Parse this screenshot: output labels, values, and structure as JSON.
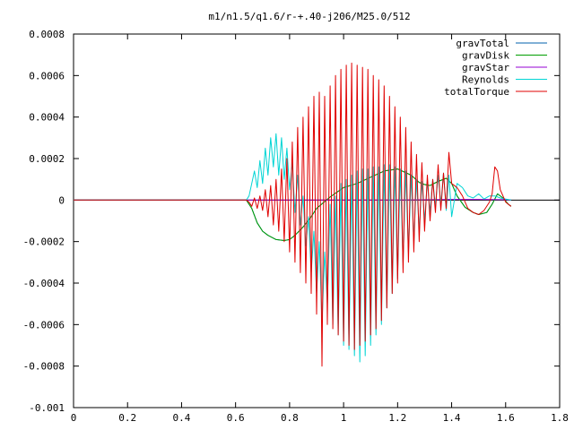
{
  "chart_data": {
    "type": "line",
    "title": "m1/n1.5/q1.6/r-+.40-j206/M25.0/512",
    "xlabel": "",
    "ylabel": "",
    "xlim": [
      0,
      1.8
    ],
    "ylim": [
      -0.001,
      0.0008
    ],
    "grid": false,
    "legend_position": "top-right",
    "x_ticks": [
      {
        "value": 0,
        "label": "0"
      },
      {
        "value": 0.2,
        "label": "0.2"
      },
      {
        "value": 0.4,
        "label": "0.4"
      },
      {
        "value": 0.6,
        "label": "0.6"
      },
      {
        "value": 0.8,
        "label": "0.8"
      },
      {
        "value": 1.0,
        "label": "1"
      },
      {
        "value": 1.2,
        "label": "1.2"
      },
      {
        "value": 1.4,
        "label": "1.4"
      },
      {
        "value": 1.6,
        "label": "1.6"
      },
      {
        "value": 1.8,
        "label": "1.8"
      }
    ],
    "y_ticks": [
      {
        "value": 0.0008,
        "label": "0.0008"
      },
      {
        "value": 0.0006,
        "label": "0.0006"
      },
      {
        "value": 0.0004,
        "label": "0.0004"
      },
      {
        "value": 0.0002,
        "label": "0.0002"
      },
      {
        "value": 0,
        "label": "0"
      },
      {
        "value": -0.0002,
        "label": "-0.0002"
      },
      {
        "value": -0.0004,
        "label": "-0.0004"
      },
      {
        "value": -0.0006,
        "label": "-0.0006"
      },
      {
        "value": -0.0008,
        "label": "-0.0008"
      },
      {
        "value": -0.001,
        "label": "-0.001"
      }
    ],
    "series": [
      {
        "name": "gravTotal",
        "color": "#0060ad",
        "x": [
          0,
          0.64,
          0.66,
          0.68,
          0.7,
          0.72,
          0.75,
          0.78,
          0.8,
          0.82,
          0.85,
          0.88,
          0.9,
          0.95,
          1.0,
          1.05,
          1.1,
          1.15,
          1.2,
          1.25,
          1.28,
          1.3,
          1.32,
          1.35,
          1.38,
          1.4,
          1.42,
          1.45,
          1.48,
          1.5,
          1.53,
          1.55,
          1.57,
          1.59,
          1.61,
          1.62
        ],
        "y": [
          0,
          0,
          -4e-05,
          -0.00011,
          -0.00015,
          -0.00017,
          -0.00019,
          -0.000195,
          -0.00019,
          -0.00017,
          -0.00013,
          -8e-05,
          -4e-05,
          1.5e-05,
          6e-05,
          8e-05,
          0.00011,
          0.00014,
          0.00015,
          0.00012,
          8.5e-05,
          7.5e-05,
          7e-05,
          9e-05,
          0.000105,
          8e-05,
          2e-05,
          -3.5e-05,
          -6e-05,
          -7e-05,
          -6e-05,
          -2e-05,
          3e-05,
          1e-05,
          -2e-05,
          -3e-05
        ]
      },
      {
        "name": "gravDisk",
        "color": "#009e00",
        "x": [
          0,
          0.64,
          0.66,
          0.68,
          0.7,
          0.72,
          0.75,
          0.78,
          0.8,
          0.82,
          0.85,
          0.88,
          0.9,
          0.95,
          1.0,
          1.05,
          1.1,
          1.15,
          1.2,
          1.25,
          1.28,
          1.3,
          1.32,
          1.35,
          1.38,
          1.4,
          1.42,
          1.45,
          1.48,
          1.5,
          1.53,
          1.55,
          1.57,
          1.59,
          1.61,
          1.62
        ],
        "y": [
          0,
          0,
          -4e-05,
          -0.00011,
          -0.00015,
          -0.00017,
          -0.00019,
          -0.000195,
          -0.00019,
          -0.00017,
          -0.00013,
          -8e-05,
          -4e-05,
          1.5e-05,
          6e-05,
          8e-05,
          0.00011,
          0.00014,
          0.00015,
          0.00012,
          8.5e-05,
          7.5e-05,
          7e-05,
          9e-05,
          0.000105,
          8e-05,
          2e-05,
          -3.5e-05,
          -6e-05,
          -7e-05,
          -6e-05,
          -2e-05,
          3e-05,
          1e-05,
          -2e-05,
          -3e-05
        ]
      },
      {
        "name": "gravStar",
        "color": "#9400d3",
        "x": [
          0,
          0.64,
          0.8,
          1.0,
          1.2,
          1.4,
          1.5,
          1.6,
          1.62
        ],
        "y": [
          0,
          0,
          0,
          0,
          0,
          3e-06,
          3e-06,
          2e-06,
          0
        ]
      },
      {
        "name": "Reynolds",
        "color": "#00d4d4",
        "x": [
          0,
          0.64,
          0.65,
          0.66,
          0.67,
          0.68,
          0.69,
          0.7,
          0.71,
          0.72,
          0.73,
          0.74,
          0.75,
          0.76,
          0.77,
          0.78,
          0.79,
          0.8,
          0.81,
          0.82,
          0.83,
          0.84,
          0.85,
          0.86,
          0.87,
          0.88,
          0.89,
          0.9,
          0.91,
          0.92,
          0.93,
          0.94,
          0.95,
          0.96,
          0.97,
          0.98,
          0.99,
          1.0,
          1.01,
          1.02,
          1.03,
          1.04,
          1.05,
          1.06,
          1.07,
          1.08,
          1.09,
          1.1,
          1.11,
          1.12,
          1.13,
          1.14,
          1.15,
          1.16,
          1.17,
          1.18,
          1.19,
          1.2,
          1.21,
          1.22,
          1.23,
          1.24,
          1.25,
          1.26,
          1.27,
          1.28,
          1.29,
          1.3,
          1.31,
          1.32,
          1.33,
          1.34,
          1.35,
          1.36,
          1.37,
          1.38,
          1.39,
          1.4,
          1.42,
          1.44,
          1.46,
          1.48,
          1.5,
          1.52,
          1.54,
          1.56,
          1.58,
          1.6,
          1.62
        ],
        "y": [
          0,
          0,
          2e-05,
          8e-05,
          0.00014,
          6e-05,
          0.00019,
          8e-05,
          0.00025,
          0.00012,
          0.0003,
          0.00016,
          0.00032,
          0.00012,
          0.0003,
          0.0001,
          0.00025,
          5e-05,
          0.00018,
          -6e-05,
          0.00012,
          -0.00012,
          2e-05,
          -0.00022,
          -8e-05,
          -0.00035,
          -0.00015,
          -0.00045,
          -0.0002,
          -0.0006,
          -0.00025,
          -0.0005,
          -2e-05,
          -0.0006,
          2e-05,
          -0.00065,
          8e-05,
          -0.0007,
          0.0001,
          -0.00072,
          0.00012,
          -0.00075,
          0.00014,
          -0.00078,
          0.00015,
          -0.00075,
          0.00015,
          -0.0007,
          0.00016,
          -0.00065,
          0.00016,
          -0.0006,
          0.00017,
          -0.00052,
          0.00017,
          -0.00045,
          0.00016,
          -0.00038,
          0.00015,
          -0.0003,
          0.00014,
          -0.00025,
          0.00012,
          -0.0002,
          0.0001,
          -0.00015,
          9e-05,
          -0.0001,
          9e-05,
          -6e-05,
          0.0001,
          -3e-05,
          0.00012,
          -2e-05,
          0.00013,
          -5e-05,
          0.00012,
          -8e-05,
          8e-05,
          6e-05,
          2e-05,
          1e-05,
          3e-05,
          5e-06,
          2e-05,
          2e-05,
          1e-05,
          5e-06,
          0
        ]
      },
      {
        "name": "totalTorque",
        "color": "#e00000",
        "x": [
          0,
          0.64,
          0.65,
          0.66,
          0.67,
          0.68,
          0.69,
          0.7,
          0.71,
          0.72,
          0.73,
          0.74,
          0.75,
          0.76,
          0.77,
          0.78,
          0.79,
          0.8,
          0.81,
          0.82,
          0.83,
          0.84,
          0.85,
          0.86,
          0.87,
          0.88,
          0.89,
          0.9,
          0.91,
          0.92,
          0.93,
          0.94,
          0.95,
          0.96,
          0.97,
          0.98,
          0.99,
          1.0,
          1.01,
          1.02,
          1.03,
          1.04,
          1.05,
          1.06,
          1.07,
          1.08,
          1.09,
          1.1,
          1.11,
          1.12,
          1.13,
          1.14,
          1.15,
          1.16,
          1.17,
          1.18,
          1.19,
          1.2,
          1.21,
          1.22,
          1.23,
          1.24,
          1.25,
          1.26,
          1.27,
          1.28,
          1.29,
          1.3,
          1.31,
          1.32,
          1.33,
          1.34,
          1.35,
          1.36,
          1.37,
          1.38,
          1.39,
          1.4,
          1.42,
          1.44,
          1.46,
          1.48,
          1.5,
          1.52,
          1.54,
          1.55,
          1.56,
          1.57,
          1.58,
          1.6,
          1.62
        ],
        "y": [
          0,
          0,
          -1e-05,
          -3e-05,
          1e-05,
          -4e-05,
          2e-05,
          -5e-05,
          5e-05,
          -8e-05,
          7e-05,
          -0.00012,
          0.0001,
          -0.00015,
          0.00015,
          -0.0002,
          0.0002,
          -0.00025,
          0.00028,
          -0.0003,
          0.00035,
          -0.00035,
          0.0004,
          -0.0004,
          0.00045,
          -0.00045,
          0.0005,
          -0.00055,
          0.00052,
          -0.0008,
          0.0005,
          -0.0006,
          0.00055,
          -0.00062,
          0.0006,
          -0.00065,
          0.00063,
          -0.00068,
          0.00065,
          -0.0007,
          0.00066,
          -0.00072,
          0.00065,
          -0.0007,
          0.00064,
          -0.00068,
          0.00063,
          -0.00065,
          0.0006,
          -0.00062,
          0.00058,
          -0.00058,
          0.00055,
          -0.00052,
          0.0005,
          -0.00045,
          0.00045,
          -0.0004,
          0.0004,
          -0.00035,
          0.00035,
          -0.0003,
          0.00028,
          -0.00025,
          0.00022,
          -0.0002,
          0.00018,
          -0.00015,
          0.00012,
          -0.0001,
          0.0001,
          -6e-05,
          0.00017,
          -5e-05,
          0.00013,
          -4e-05,
          0.00023,
          8e-05,
          6e-05,
          2e-05,
          -4e-05,
          -6e-05,
          -7e-05,
          -5e-05,
          -1e-05,
          3e-05,
          0.00016,
          0.00014,
          5e-05,
          -1e-05,
          -3e-05
        ]
      }
    ]
  }
}
